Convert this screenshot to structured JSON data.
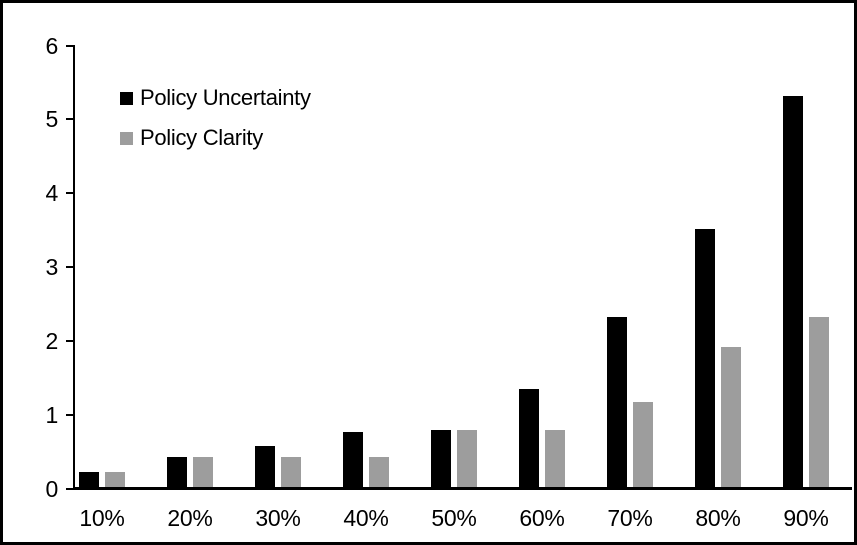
{
  "chart_data": {
    "type": "bar",
    "title": "",
    "xlabel": "",
    "ylabel": "",
    "categories": [
      "10%",
      "20%",
      "30%",
      "40%",
      "50%",
      "60%",
      "70%",
      "80%",
      "90%"
    ],
    "series": [
      {
        "name": "Policy Uncertainty",
        "color": "#000000",
        "values": [
          0.2,
          0.4,
          0.55,
          0.75,
          0.77,
          1.33,
          2.3,
          3.5,
          5.3
        ]
      },
      {
        "name": "Policy Clarity",
        "color": "#9d9d9d",
        "values": [
          0.2,
          0.4,
          0.4,
          0.4,
          0.77,
          0.77,
          1.15,
          1.9,
          2.3
        ]
      }
    ],
    "ylim": [
      0,
      6
    ],
    "yticks": [
      0,
      1,
      2,
      3,
      4,
      5,
      6
    ],
    "grid": false,
    "legend_position": "top-left-inside",
    "frame_color": "#000000",
    "background_color": "#ffffff"
  }
}
